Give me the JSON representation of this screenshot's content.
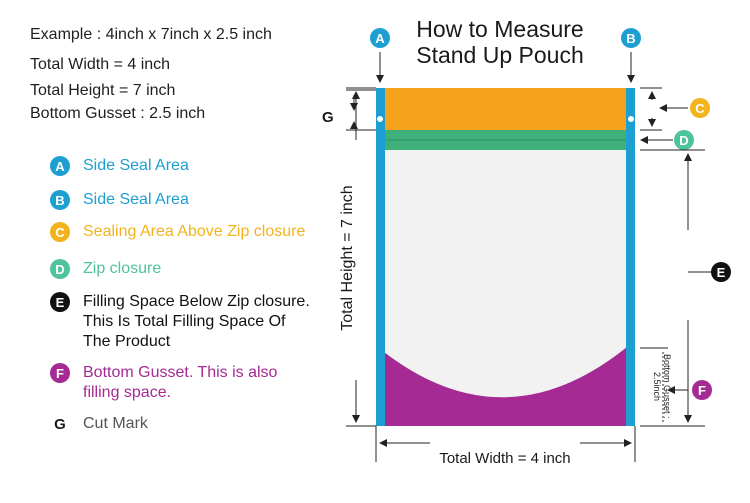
{
  "spec": {
    "example": "Example : 4inch x 7inch x 2.5 inch",
    "total_width": "Total Width = 4 inch",
    "total_height": "Total Height = 7 inch",
    "bottom_gusset": "Bottom Gusset : 2.5 inch"
  },
  "legend": [
    {
      "letter": "A",
      "text": "Side Seal Area",
      "color": "#1e9fd2"
    },
    {
      "letter": "B",
      "text": "Side Seal Area",
      "color": "#1e9fd2"
    },
    {
      "letter": "C",
      "text": "Sealing Area Above Zip closure",
      "color": "#f2b31c"
    },
    {
      "letter": "D",
      "text": "Zip closure",
      "color": "#4fc39a"
    },
    {
      "letter": "E",
      "text": "Filling Space Below Zip closure.\nThis Is Total Filling Space Of\nThe Product",
      "color": "#111111"
    },
    {
      "letter": "F",
      "text": "Bottom Gusset. This is also\nfilling space.",
      "color": "#a52a93"
    },
    {
      "letter": "G",
      "text": "Cut Mark",
      "color": "#555555"
    }
  ],
  "diagram": {
    "title_line1": "How to Measure",
    "title_line2": "Stand Up Pouch",
    "label_a": "A",
    "label_b": "B",
    "label_c": "C",
    "label_d": "D",
    "label_e": "E",
    "label_f": "F",
    "label_g": "G",
    "height_label": "Total Height = 7 inch",
    "width_label": "Total Width = 4 inch",
    "gusset_label_line1": "Bottom Gusset :",
    "gusset_label_line2": "2.5inch"
  },
  "colors": {
    "side_seal": "#1e9fd2",
    "top_seal": "#f5a21c",
    "zip": "#3fb07a",
    "gusset": "#a52a93",
    "body": "#f2f2f2"
  }
}
